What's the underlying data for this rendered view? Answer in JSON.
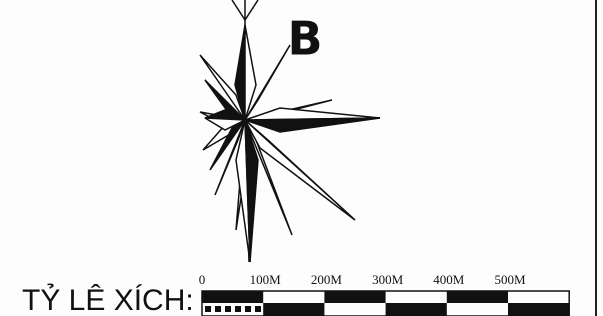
{
  "north_label": "B",
  "scale": {
    "title": "TỶ LÊ XÍCH:",
    "labels": [
      "0",
      "100M",
      "200M",
      "300M",
      "400M",
      "500M"
    ]
  }
}
